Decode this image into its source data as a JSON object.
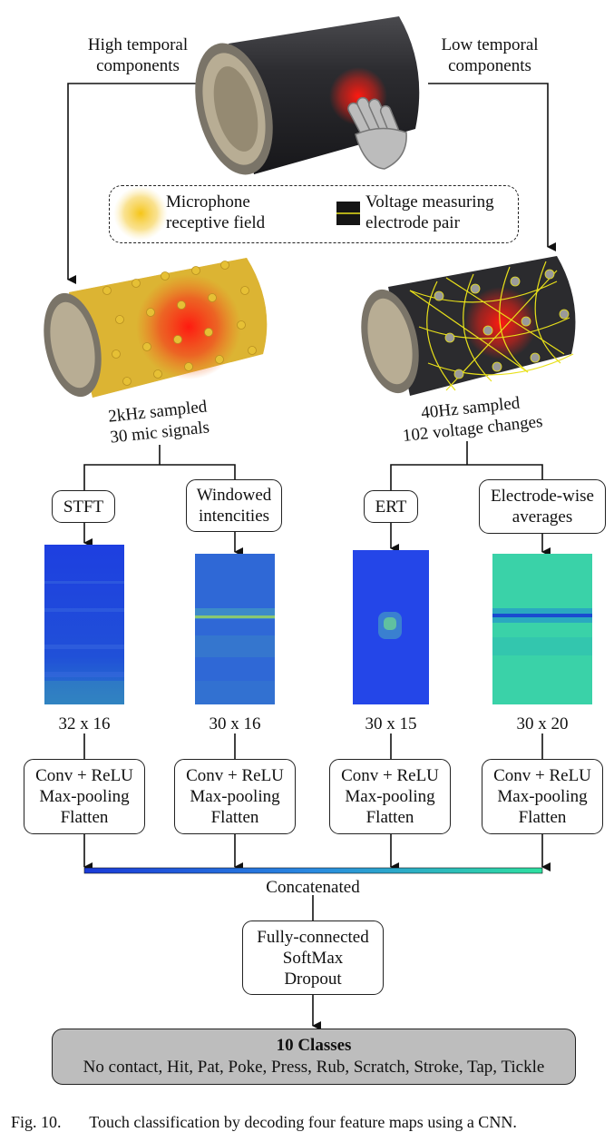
{
  "labels": {
    "high_temporal": [
      "High temporal",
      "components"
    ],
    "low_temporal": [
      "Low temporal",
      "components"
    ],
    "mic_rate": [
      "2kHz sampled",
      "30 mic signals"
    ],
    "volt_rate": [
      "40Hz sampled",
      "102 voltage changes"
    ]
  },
  "legend": {
    "microphone": [
      "Microphone",
      "receptive field"
    ],
    "electrode": [
      "Voltage measuring",
      "electrode pair"
    ]
  },
  "branches": [
    {
      "method": [
        "STFT"
      ],
      "dims": "32 x 16",
      "colormap": "blue"
    },
    {
      "method": [
        "Windowed",
        "intencities"
      ],
      "dims": "30 x 16",
      "colormap": "blue-teal"
    },
    {
      "method": [
        "ERT"
      ],
      "dims": "30 x 15",
      "colormap": "blue-bright"
    },
    {
      "method": [
        "Electrode-wise",
        "averages"
      ],
      "dims": "30 x 20",
      "colormap": "green"
    }
  ],
  "cnn_block": [
    "Conv + ReLU",
    "Max-pooling",
    "Flatten"
  ],
  "concat_label": "Concatenated",
  "fc_block": [
    "Fully-connected",
    "SoftMax",
    "Dropout"
  ],
  "classes": {
    "title": "10 Classes",
    "list": "No contact, Hit, Pat, Poke, Press, Rub, Scratch, Stroke, Tap, Tickle"
  },
  "caption": {
    "prefix": "Fig. 10.",
    "text": "Touch classification by decoding four feature maps using a CNN."
  },
  "colors": {
    "cylinder": "#2a2a2c",
    "mic_overlay": "#e8b820",
    "touch_red": "#e0201a",
    "electrode_line": "#e8e01a",
    "classes_fill": "#bdbdbd",
    "gradient_start": "#1a3ad8",
    "gradient_end": "#2ee0a0"
  }
}
